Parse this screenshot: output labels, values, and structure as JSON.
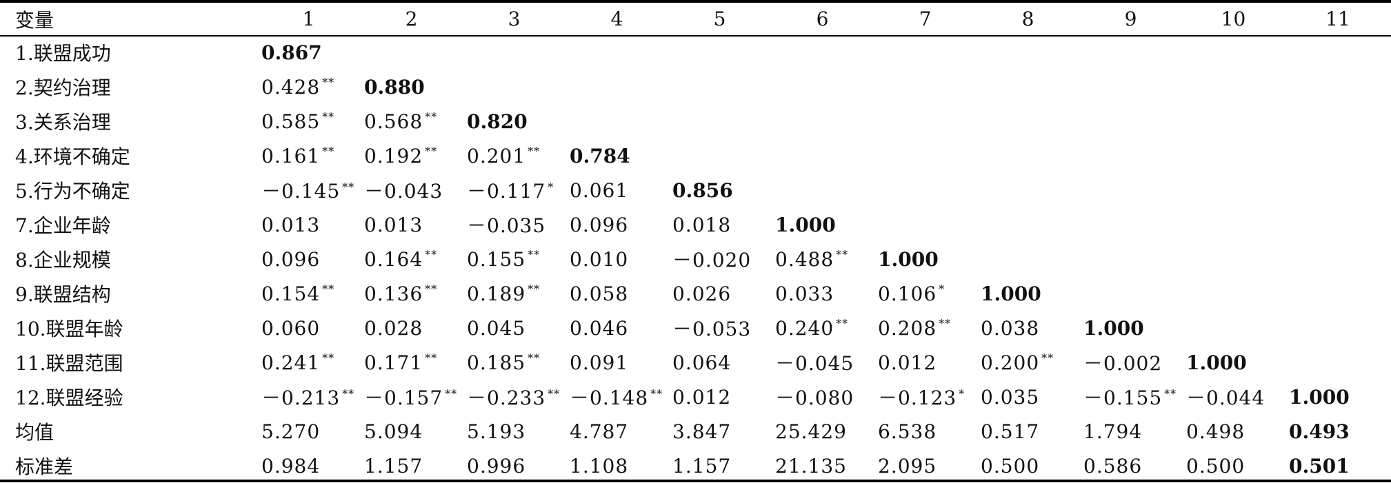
{
  "header": [
    "变量",
    "1",
    "2",
    "3",
    "4",
    "5",
    "6",
    "7",
    "8",
    "9",
    "10",
    "11"
  ],
  "rows": [
    {
      "label": "1.联盟成功",
      "cells": [
        {
          "v": "0.867",
          "b": true
        },
        {
          "v": ""
        },
        {
          "v": ""
        },
        {
          "v": ""
        },
        {
          "v": ""
        },
        {
          "v": ""
        },
        {
          "v": ""
        },
        {
          "v": ""
        },
        {
          "v": ""
        },
        {
          "v": ""
        },
        {
          "v": ""
        }
      ]
    },
    {
      "label": "2.契约治理",
      "cells": [
        {
          "v": "0.428",
          "s": "**"
        },
        {
          "v": "0.880",
          "b": true
        },
        {
          "v": ""
        },
        {
          "v": ""
        },
        {
          "v": ""
        },
        {
          "v": ""
        },
        {
          "v": ""
        },
        {
          "v": ""
        },
        {
          "v": ""
        },
        {
          "v": ""
        },
        {
          "v": ""
        }
      ]
    },
    {
      "label": "3.关系治理",
      "cells": [
        {
          "v": "0.585",
          "s": "**"
        },
        {
          "v": "0.568",
          "s": "**"
        },
        {
          "v": "0.820",
          "b": true
        },
        {
          "v": ""
        },
        {
          "v": ""
        },
        {
          "v": ""
        },
        {
          "v": ""
        },
        {
          "v": ""
        },
        {
          "v": ""
        },
        {
          "v": ""
        },
        {
          "v": ""
        }
      ]
    },
    {
      "label": "4.环境不确定",
      "cells": [
        {
          "v": "0.161",
          "s": "**"
        },
        {
          "v": "0.192",
          "s": "**"
        },
        {
          "v": "0.201",
          "s": "**"
        },
        {
          "v": "0.784",
          "b": true
        },
        {
          "v": ""
        },
        {
          "v": ""
        },
        {
          "v": ""
        },
        {
          "v": ""
        },
        {
          "v": ""
        },
        {
          "v": ""
        },
        {
          "v": ""
        }
      ]
    },
    {
      "label": "5.行为不确定",
      "cells": [
        {
          "v": "－0.145",
          "s": "**"
        },
        {
          "v": "－0.043"
        },
        {
          "v": "－0.117",
          "s": "*"
        },
        {
          "v": "0.061"
        },
        {
          "v": "0.856",
          "b": true
        },
        {
          "v": ""
        },
        {
          "v": ""
        },
        {
          "v": ""
        },
        {
          "v": ""
        },
        {
          "v": ""
        },
        {
          "v": ""
        }
      ]
    },
    {
      "label": "7.企业年龄",
      "cells": [
        {
          "v": "0.013"
        },
        {
          "v": "0.013"
        },
        {
          "v": "－0.035"
        },
        {
          "v": "0.096"
        },
        {
          "v": "0.018"
        },
        {
          "v": "1.000",
          "b": true
        },
        {
          "v": ""
        },
        {
          "v": ""
        },
        {
          "v": ""
        },
        {
          "v": ""
        },
        {
          "v": ""
        }
      ]
    },
    {
      "label": "8.企业规模",
      "cells": [
        {
          "v": "0.096"
        },
        {
          "v": "0.164",
          "s": "**"
        },
        {
          "v": "0.155",
          "s": "**"
        },
        {
          "v": "0.010"
        },
        {
          "v": "－0.020"
        },
        {
          "v": "0.488",
          "s": "**"
        },
        {
          "v": "1.000",
          "b": true
        },
        {
          "v": ""
        },
        {
          "v": ""
        },
        {
          "v": ""
        },
        {
          "v": ""
        }
      ]
    },
    {
      "label": "9.联盟结构",
      "cells": [
        {
          "v": "0.154",
          "s": "**"
        },
        {
          "v": "0.136",
          "s": "**"
        },
        {
          "v": "0.189",
          "s": "**"
        },
        {
          "v": "0.058"
        },
        {
          "v": "0.026"
        },
        {
          "v": "0.033"
        },
        {
          "v": "0.106",
          "s": "*"
        },
        {
          "v": "1.000",
          "b": true
        },
        {
          "v": ""
        },
        {
          "v": ""
        },
        {
          "v": ""
        }
      ]
    },
    {
      "label": "10.联盟年龄",
      "cells": [
        {
          "v": "0.060"
        },
        {
          "v": "0.028"
        },
        {
          "v": "0.045"
        },
        {
          "v": "0.046"
        },
        {
          "v": "－0.053"
        },
        {
          "v": "0.240",
          "s": "**"
        },
        {
          "v": "0.208",
          "s": "**"
        },
        {
          "v": "0.038"
        },
        {
          "v": "1.000",
          "b": true
        },
        {
          "v": ""
        },
        {
          "v": ""
        }
      ]
    },
    {
      "label": "11.联盟范围",
      "cells": [
        {
          "v": "0.241",
          "s": "**"
        },
        {
          "v": "0.171",
          "s": "**"
        },
        {
          "v": "0.185",
          "s": "**"
        },
        {
          "v": "0.091"
        },
        {
          "v": "0.064"
        },
        {
          "v": "－0.045"
        },
        {
          "v": "0.012"
        },
        {
          "v": "0.200",
          "s": "**"
        },
        {
          "v": "－0.002"
        },
        {
          "v": "1.000",
          "b": true
        },
        {
          "v": ""
        }
      ]
    },
    {
      "label": "12.联盟经验",
      "cells": [
        {
          "v": "－0.213",
          "s": "**"
        },
        {
          "v": "－0.157",
          "s": "**"
        },
        {
          "v": "－0.233",
          "s": "**"
        },
        {
          "v": "－0.148",
          "s": "**"
        },
        {
          "v": "0.012"
        },
        {
          "v": "－0.080"
        },
        {
          "v": "－0.123",
          "s": "*"
        },
        {
          "v": "0.035"
        },
        {
          "v": "－0.155",
          "s": "**"
        },
        {
          "v": "－0.044"
        },
        {
          "v": "1.000",
          "b": true
        }
      ]
    },
    {
      "label": "均值",
      "cells": [
        {
          "v": "5.270"
        },
        {
          "v": "5.094"
        },
        {
          "v": "5.193"
        },
        {
          "v": "4.787"
        },
        {
          "v": "3.847"
        },
        {
          "v": "25.429"
        },
        {
          "v": "6.538"
        },
        {
          "v": "0.517"
        },
        {
          "v": "1.794"
        },
        {
          "v": "0.498"
        },
        {
          "v": "0.493",
          "b": true
        }
      ]
    },
    {
      "label": "标准差",
      "cells": [
        {
          "v": "0.984"
        },
        {
          "v": "1.157"
        },
        {
          "v": "0.996"
        },
        {
          "v": "1.108"
        },
        {
          "v": "1.157"
        },
        {
          "v": "21.135"
        },
        {
          "v": "2.095"
        },
        {
          "v": "0.500"
        },
        {
          "v": "0.586"
        },
        {
          "v": "0.500"
        },
        {
          "v": "0.501",
          "b": true
        }
      ]
    }
  ]
}
